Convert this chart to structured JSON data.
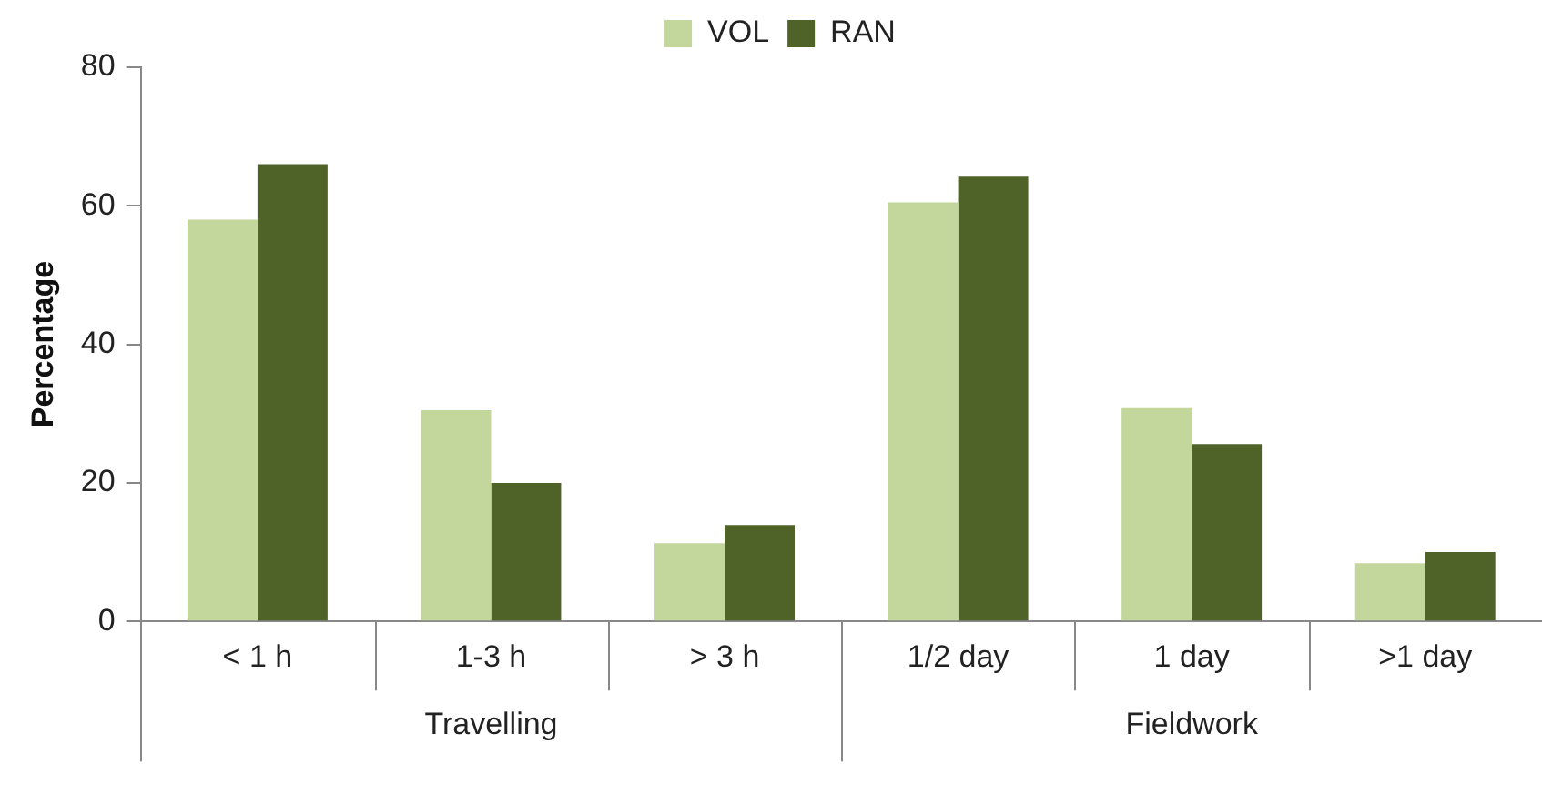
{
  "chart_data": {
    "type": "bar",
    "ylabel": "Percentage",
    "categories": [
      "< 1 h",
      "1-3 h",
      "> 3 h",
      "1/2 day",
      "1 day",
      ">1 day"
    ],
    "series": [
      {
        "name": "VOL",
        "color": "#c3d69b",
        "values": [
          58,
          30.5,
          11.3,
          60.5,
          30.8,
          8.4
        ]
      },
      {
        "name": "RAN",
        "color": "#4f6228",
        "values": [
          66,
          20,
          13.9,
          64.2,
          25.6,
          10
        ]
      }
    ],
    "ylim": [
      0,
      80
    ],
    "yticks": [
      0,
      20,
      40,
      60,
      80
    ],
    "grid": false,
    "legend": "top",
    "annotations": [
      "Travelling",
      "Fieldwork"
    ]
  }
}
